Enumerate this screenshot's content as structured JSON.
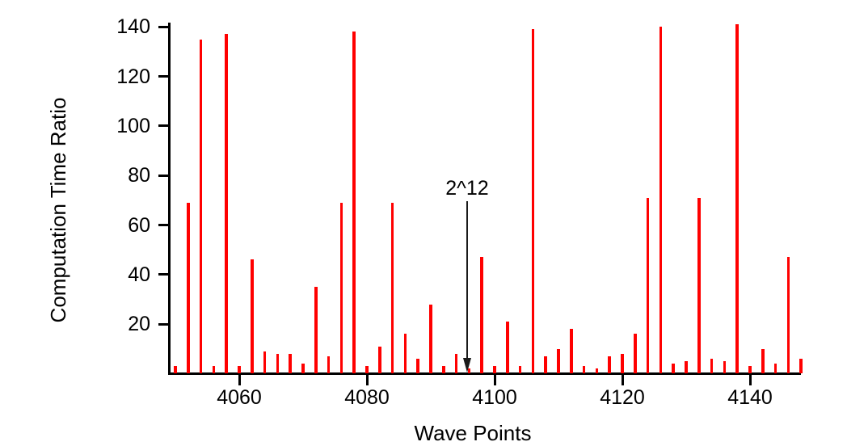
{
  "chart_data": {
    "type": "bar",
    "title": "",
    "xlabel": "Wave Points",
    "ylabel": "Computation Time Ratio",
    "bar_color": "#ff0000",
    "axis_color": "#000000",
    "background_color": "#ffffff",
    "grid": false,
    "legend": false,
    "xlim": [
      4049,
      4148.6
    ],
    "ylim": [
      0,
      141.7
    ],
    "xticks": [
      4060,
      4080,
      4100,
      4120,
      4140
    ],
    "yticks": [
      20,
      40,
      60,
      80,
      100,
      120,
      140
    ],
    "annotation": {
      "text": "2^12",
      "x": 4096,
      "arrow": "down"
    },
    "x": [
      4050,
      4052,
      4054,
      4056,
      4058,
      4060,
      4062,
      4064,
      4066,
      4068,
      4070,
      4072,
      4074,
      4076,
      4078,
      4080,
      4082,
      4084,
      4086,
      4088,
      4090,
      4092,
      4094,
      4096,
      4098,
      4100,
      4102,
      4104,
      4106,
      4108,
      4110,
      4112,
      4114,
      4116,
      4118,
      4120,
      4122,
      4124,
      4126,
      4128,
      4130,
      4132,
      4134,
      4136,
      4138,
      4140,
      4142,
      4144,
      4146,
      4148
    ],
    "values": [
      3,
      69,
      135,
      3,
      137,
      3,
      46,
      9,
      8,
      8,
      4,
      35,
      7,
      69,
      138,
      3,
      11,
      69,
      16,
      6,
      28,
      3,
      8,
      2,
      47,
      3,
      21,
      3,
      139,
      7,
      10,
      18,
      3,
      2,
      7,
      8,
      16,
      71,
      140,
      4,
      5,
      71,
      6,
      5,
      141,
      3,
      10,
      4,
      47,
      6
    ]
  }
}
